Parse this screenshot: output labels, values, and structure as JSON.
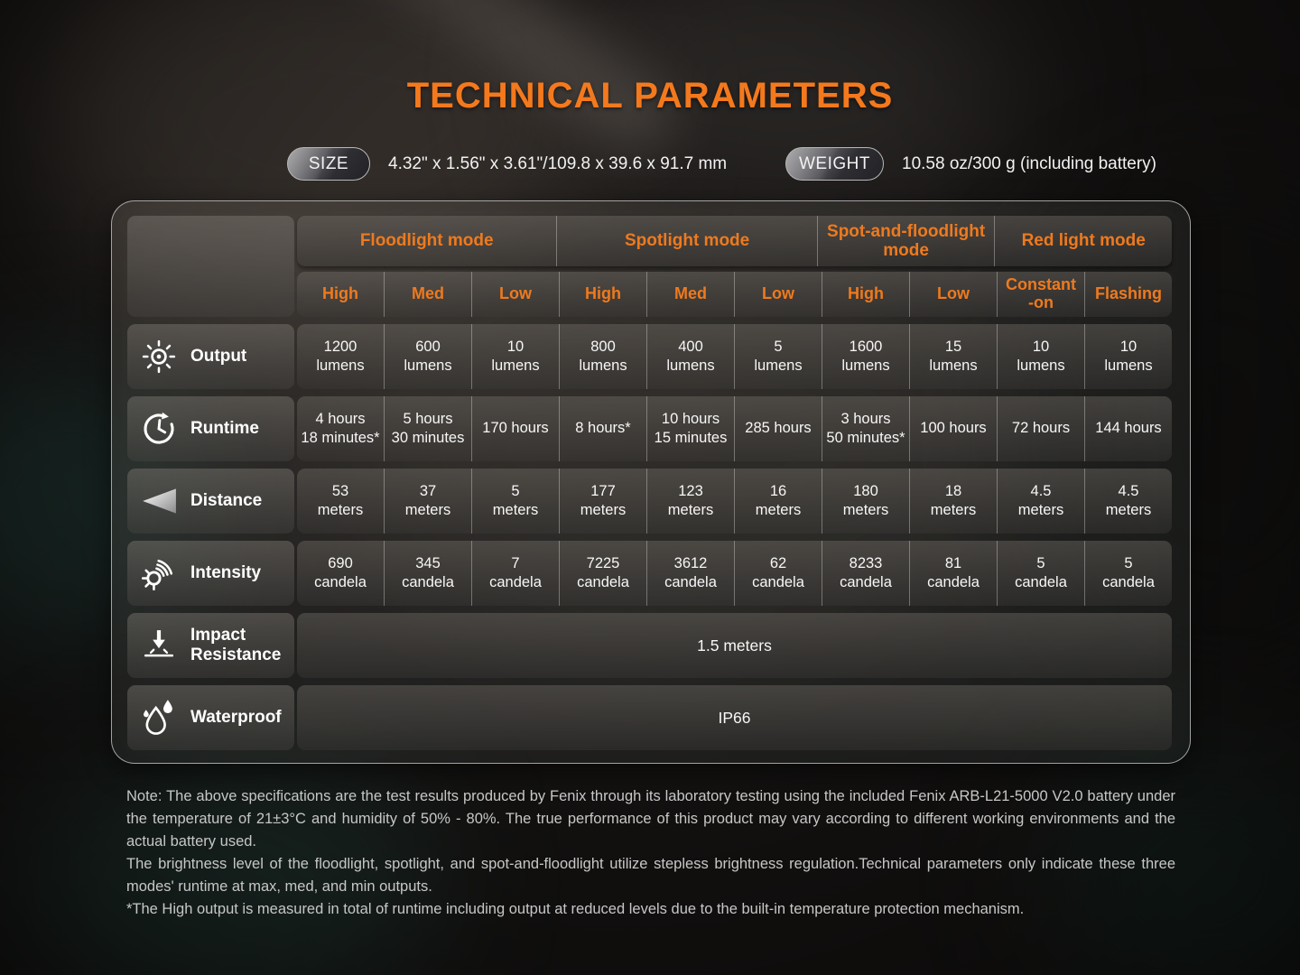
{
  "title": "TECHNICAL PARAMETERS",
  "badges": {
    "size_label": "SIZE",
    "size_value": "4.32\" x 1.56\" x 3.61\"/109.8 x 39.6 x 91.7 mm",
    "weight_label": "WEIGHT",
    "weight_value": "10.58 oz/300 g (including battery)"
  },
  "accent_color": "#ee7a1e",
  "table": {
    "mode_groups": [
      {
        "label": "Floodlight mode",
        "span": 3
      },
      {
        "label": "Spotlight mode",
        "span": 3
      },
      {
        "label": "Spot-and-floodlight mode",
        "span": 2
      },
      {
        "label": "Red light mode",
        "span": 2
      }
    ],
    "level_headers": [
      [
        "High"
      ],
      [
        "Med"
      ],
      [
        "Low"
      ],
      [
        "High"
      ],
      [
        "Med"
      ],
      [
        "Low"
      ],
      [
        "High"
      ],
      [
        "Low"
      ],
      [
        "Constant",
        "-on"
      ],
      [
        "Flashing"
      ]
    ],
    "rows": [
      {
        "icon": "sun-icon",
        "label": "Output",
        "values": [
          [
            "1200",
            "lumens"
          ],
          [
            "600",
            "lumens"
          ],
          [
            "10",
            "lumens"
          ],
          [
            "800",
            "lumens"
          ],
          [
            "400",
            "lumens"
          ],
          [
            "5",
            "lumens"
          ],
          [
            "1600",
            "lumens"
          ],
          [
            "15",
            "lumens"
          ],
          [
            "10",
            "lumens"
          ],
          [
            "10",
            "lumens"
          ]
        ]
      },
      {
        "icon": "clock-icon",
        "label": "Runtime",
        "values": [
          [
            "4 hours",
            "18 minutes*"
          ],
          [
            "5 hours",
            "30 minutes"
          ],
          [
            "170 hours"
          ],
          [
            "8 hours*"
          ],
          [
            "10 hours",
            "15 minutes"
          ],
          [
            "285 hours"
          ],
          [
            "3 hours",
            "50 minutes*"
          ],
          [
            "100 hours"
          ],
          [
            "72 hours"
          ],
          [
            "144 hours"
          ]
        ]
      },
      {
        "icon": "beam-distance-icon",
        "label": "Distance",
        "values": [
          [
            "53",
            "meters"
          ],
          [
            "37",
            "meters"
          ],
          [
            "5",
            "meters"
          ],
          [
            "177",
            "meters"
          ],
          [
            "123",
            "meters"
          ],
          [
            "16",
            "meters"
          ],
          [
            "180",
            "meters"
          ],
          [
            "18",
            "meters"
          ],
          [
            "4.5",
            "meters"
          ],
          [
            "4.5",
            "meters"
          ]
        ]
      },
      {
        "icon": "intensity-icon",
        "label": "Intensity",
        "values": [
          [
            "690",
            "candela"
          ],
          [
            "345",
            "candela"
          ],
          [
            "7",
            "candela"
          ],
          [
            "7225",
            "candela"
          ],
          [
            "3612",
            "candela"
          ],
          [
            "62",
            "candela"
          ],
          [
            "8233",
            "candela"
          ],
          [
            "81",
            "candela"
          ],
          [
            "5",
            "candela"
          ],
          [
            "5",
            "candela"
          ]
        ]
      }
    ],
    "full_rows": [
      {
        "icon": "impact-arrow-icon",
        "label": "Impact Resistance",
        "value": "1.5 meters"
      },
      {
        "icon": "water-drops-icon",
        "label": "Waterproof",
        "value": "IP66"
      }
    ]
  },
  "notes": [
    "Note: The above specifications are the test results produced by Fenix through its laboratory testing using the included Fenix ARB-L21-5000 V2.0 battery under the temperature of 21±3°C and humidity of 50% - 80%.  The true performance of this product may vary according to different working environments and the actual battery used.",
    "The brightness level of the floodlight, spotlight, and spot-and-floodlight utilize stepless brightness regulation.Technical parameters only indicate these three modes' runtime at max, med, and min outputs.",
    "*The High output is measured in total of runtime including output at reduced levels due to the built-in temperature protection mechanism."
  ]
}
